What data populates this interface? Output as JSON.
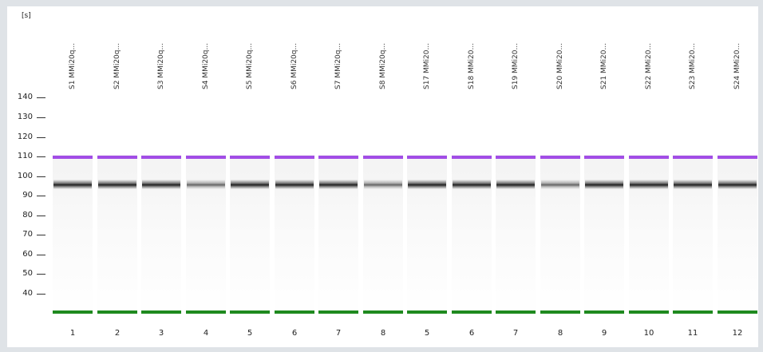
{
  "gel": {
    "unit_label": "[s]",
    "y_ticks": [
      "140",
      "130",
      "120",
      "110",
      "100",
      "90",
      "80",
      "70",
      "60",
      "50",
      "40"
    ],
    "colors": {
      "upper_marker": "#a24de6",
      "lower_marker": "#1f8a1f",
      "band": "#1a1a1a",
      "background": "#ffffff"
    },
    "lanes": [
      {
        "name": "S1  MMi20q...",
        "number": "1"
      },
      {
        "name": "S2  MMi20q...",
        "number": "2"
      },
      {
        "name": "S3  MMi20q...",
        "number": "3"
      },
      {
        "name": "S4  MMi20q...",
        "number": "4"
      },
      {
        "name": "S5  MMi20q...",
        "number": "5"
      },
      {
        "name": "S6  MMi20q...",
        "number": "6"
      },
      {
        "name": "S7  MMi20q...",
        "number": "7"
      },
      {
        "name": "S8  MMi20q...",
        "number": "8"
      },
      {
        "name": "S17  MMi20...",
        "number": "5"
      },
      {
        "name": "S18  MMi20...",
        "number": "6"
      },
      {
        "name": "S19  MMi20...",
        "number": "7"
      },
      {
        "name": "S20  MMi20...",
        "number": "8"
      },
      {
        "name": "S21  MMi20...",
        "number": "9"
      },
      {
        "name": "S22  MMi20...",
        "number": "10"
      },
      {
        "name": "S23  MMi20...",
        "number": "11"
      },
      {
        "name": "S24  MMi20...",
        "number": "12"
      }
    ]
  }
}
